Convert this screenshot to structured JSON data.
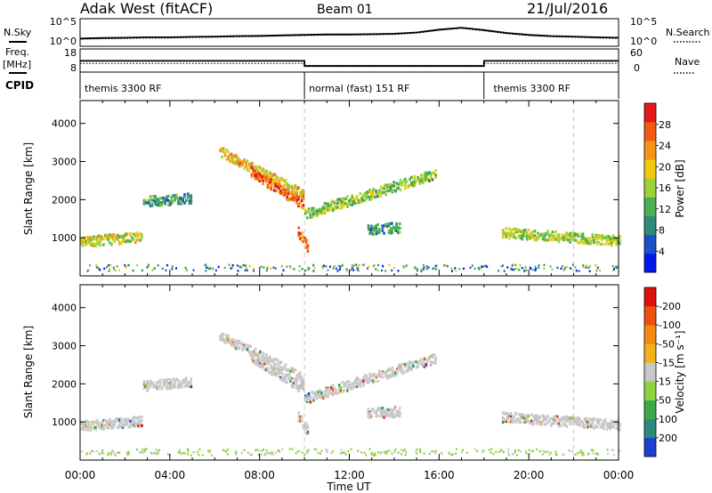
{
  "header": {
    "station": "Adak West (fitACF)",
    "beam": "Beam 01",
    "date": "21/Jul/2016"
  },
  "side_labels": {
    "nsky": "N.Sky",
    "nsearch": "N.Search",
    "freq_line1": "Freq.",
    "freq_line2": "[MHz]",
    "nave": "Nave",
    "cpid": "CPID"
  },
  "chart_data": [
    {
      "type": "line",
      "panel": "noise",
      "left_ticks": [
        "10^5",
        "10^0"
      ],
      "right_ticks": [
        "10^5",
        "10^0"
      ],
      "series": [
        {
          "name": "N.Sky",
          "style": "solid",
          "x": [
            0,
            1,
            2,
            3,
            4,
            5,
            6,
            7,
            8,
            9,
            10,
            11,
            12,
            13,
            14,
            15,
            16,
            17,
            18,
            19,
            20,
            21,
            22,
            23,
            24
          ],
          "y": [
            0.25,
            0.27,
            0.28,
            0.3,
            0.3,
            0.32,
            0.33,
            0.35,
            0.36,
            0.38,
            0.4,
            0.42,
            0.42,
            0.43,
            0.45,
            0.5,
            0.62,
            0.7,
            0.6,
            0.48,
            0.4,
            0.35,
            0.33,
            0.3,
            0.28
          ]
        },
        {
          "name": "N.Search",
          "style": "dotted",
          "x": [
            0,
            1,
            2,
            3,
            4,
            5,
            6,
            7,
            8,
            9,
            10,
            11,
            12,
            13,
            14,
            15,
            16,
            17,
            18,
            19,
            20,
            21,
            22,
            23,
            24
          ],
          "y": [
            0.22,
            0.24,
            0.25,
            0.27,
            0.27,
            0.29,
            0.3,
            0.32,
            0.33,
            0.35,
            0.37,
            0.39,
            0.39,
            0.4,
            0.42,
            0.47,
            0.59,
            0.67,
            0.57,
            0.45,
            0.37,
            0.32,
            0.3,
            0.27,
            0.25
          ]
        }
      ]
    },
    {
      "type": "line",
      "panel": "frequency",
      "left_ticks": [
        "18",
        "8"
      ],
      "right_ticks": [
        "60",
        "0"
      ],
      "series": [
        {
          "name": "Freq.",
          "style": "solid",
          "x": [
            0,
            10,
            10,
            18,
            18,
            24
          ],
          "y": [
            12.8,
            12.8,
            10.2,
            10.2,
            12.8,
            12.8
          ]
        },
        {
          "name": "Nave",
          "style": "dotted",
          "x": [
            0,
            10,
            10,
            18,
            18,
            24
          ],
          "y": [
            21,
            21,
            15,
            15,
            21,
            21
          ]
        }
      ]
    },
    {
      "type": "table",
      "panel": "cpid",
      "segments": [
        {
          "start": 0,
          "end": 10,
          "label": "themis 3300 RF"
        },
        {
          "start": 10,
          "end": 18,
          "label": "normal (fast) 151 RF"
        },
        {
          "start": 18,
          "end": 24,
          "label": "themis 3300 RF"
        }
      ]
    },
    {
      "type": "heatmap",
      "panel": "power",
      "ylabel": "Slant Range [km]",
      "xlim": [
        0,
        24
      ],
      "ylim": [
        0,
        4600
      ],
      "yticks": [
        1000,
        2000,
        3000,
        4000
      ],
      "colorbar": {
        "label": "Power [dB]",
        "ticks": [
          "4",
          "8",
          "12",
          "16",
          "20",
          "24",
          "28"
        ],
        "colors": [
          "#0018e8",
          "#1f4fc8",
          "#2e8a7a",
          "#4caf50",
          "#9bd23c",
          "#f2c80a",
          "#f7931a",
          "#f25a14",
          "#e21a1a"
        ]
      },
      "scatter_bands": [
        {
          "t0": 0.0,
          "t1": 2.7,
          "r0": 930,
          "r1": 1050,
          "level": 0.55
        },
        {
          "t0": 2.8,
          "t1": 4.9,
          "r0": 1980,
          "r1": 2070,
          "level": 0.3
        },
        {
          "t0": 6.2,
          "t1": 9.9,
          "r0": 3300,
          "r1": 2180,
          "level": 0.65
        },
        {
          "t0": 7.6,
          "t1": 9.9,
          "r0": 2750,
          "r1": 1900,
          "level": 0.85
        },
        {
          "t0": 9.7,
          "t1": 10.1,
          "r0": 1200,
          "r1": 800,
          "level": 0.8
        },
        {
          "t0": 10.0,
          "t1": 15.8,
          "r0": 1650,
          "r1": 2700,
          "level": 0.45
        },
        {
          "t0": 12.8,
          "t1": 14.2,
          "r0": 1250,
          "r1": 1300,
          "level": 0.3
        },
        {
          "t0": 18.8,
          "t1": 24.0,
          "r0": 1160,
          "r1": 950,
          "level": 0.5
        }
      ],
      "ground_scatter_range": [
        150,
        320
      ]
    },
    {
      "type": "heatmap",
      "panel": "velocity",
      "ylabel": "Slant Range [km]",
      "xlabel": "Time UT",
      "xlim": [
        0,
        24
      ],
      "ylim": [
        0,
        4600
      ],
      "yticks": [
        1000,
        2000,
        3000,
        4000
      ],
      "xticks": [
        "00:00",
        "04:00",
        "08:00",
        "12:00",
        "16:00",
        "20:00",
        "00:00"
      ],
      "colorbar": {
        "label": "Velocity [m s⁻¹]",
        "ticks": [
          "200",
          "100",
          "50",
          "15",
          "-15",
          "-50",
          "-100",
          "-200"
        ],
        "colors": [
          "#1f3fd0",
          "#2c8a7a",
          "#3aaa4a",
          "#8fd43c",
          "#c8c8c8",
          "#f0b21a",
          "#f28a10",
          "#ee5010",
          "#e01010"
        ]
      },
      "scatter_bands": [
        {
          "t0": 0.0,
          "t1": 2.7,
          "r0": 930,
          "r1": 1050,
          "level": 0.5
        },
        {
          "t0": 2.8,
          "t1": 4.9,
          "r0": 1980,
          "r1": 2070,
          "level": 0.5
        },
        {
          "t0": 6.2,
          "t1": 9.9,
          "r0": 3300,
          "r1": 2180,
          "level": 0.5
        },
        {
          "t0": 7.6,
          "t1": 9.9,
          "r0": 2750,
          "r1": 1900,
          "level": 0.5
        },
        {
          "t0": 9.7,
          "t1": 10.1,
          "r0": 1200,
          "r1": 800,
          "level": 0.5
        },
        {
          "t0": 10.0,
          "t1": 15.8,
          "r0": 1650,
          "r1": 2700,
          "level": 0.5
        },
        {
          "t0": 12.8,
          "t1": 14.2,
          "r0": 1250,
          "r1": 1300,
          "level": 0.6
        },
        {
          "t0": 18.8,
          "t1": 24.0,
          "r0": 1160,
          "r1": 950,
          "level": 0.5
        }
      ],
      "ground_scatter_range": [
        150,
        320
      ]
    }
  ]
}
